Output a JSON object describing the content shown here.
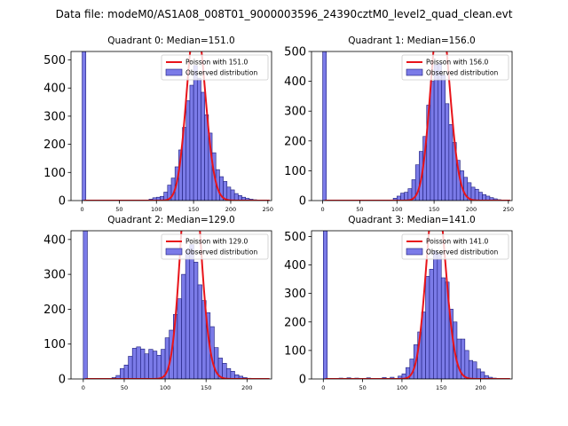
{
  "suptitle": "Data file: modeM0/AS1A08_008T01_9000003596_24390cztM0_level2_quad_clean.evt",
  "colors": {
    "bar_fill": "#7b7be8",
    "bar_edge": "#1c1c7a",
    "poisson_line": "#e8141a",
    "axes": "#000000",
    "legend_edge": "#cccccc"
  },
  "chart_data": [
    {
      "type": "bar",
      "title": "Quadrant 0: Median=151.0",
      "xlim": [
        -15,
        255
      ],
      "ylim": [
        0,
        530
      ],
      "xticks": [
        0,
        50,
        100,
        150,
        200,
        250
      ],
      "yticks": [
        0,
        100,
        200,
        300,
        400,
        500
      ],
      "bin_width": 5,
      "legend": {
        "line": "Poisson with 151.0",
        "bars": "Observed distribution",
        "position": "top-right"
      },
      "bins": [
        [
          0,
          530
        ],
        [
          90,
          5
        ],
        [
          95,
          10
        ],
        [
          100,
          12
        ],
        [
          105,
          15
        ],
        [
          110,
          30
        ],
        [
          115,
          55
        ],
        [
          120,
          80
        ],
        [
          125,
          120
        ],
        [
          130,
          180
        ],
        [
          135,
          260
        ],
        [
          140,
          355
        ],
        [
          145,
          410
        ],
        [
          150,
          480
        ],
        [
          155,
          435
        ],
        [
          160,
          385
        ],
        [
          165,
          305
        ],
        [
          170,
          240
        ],
        [
          175,
          170
        ],
        [
          180,
          110
        ],
        [
          185,
          85
        ],
        [
          190,
          68
        ],
        [
          195,
          48
        ],
        [
          200,
          38
        ],
        [
          205,
          25
        ],
        [
          210,
          18
        ],
        [
          215,
          12
        ],
        [
          220,
          8
        ],
        [
          225,
          5
        ],
        [
          230,
          3
        ],
        [
          235,
          2
        ]
      ],
      "poisson": {
        "mean": 151,
        "scale": 5
      }
    },
    {
      "type": "bar",
      "title": "Quadrant 1: Median=156.0",
      "xlim": [
        -15,
        255
      ],
      "ylim": [
        0,
        500
      ],
      "xticks": [
        0,
        50,
        100,
        150,
        200,
        250
      ],
      "yticks": [
        0,
        100,
        200,
        300,
        400,
        500
      ],
      "bin_width": 5,
      "legend": {
        "line": "Poisson with 156.0",
        "bars": "Observed distribution",
        "position": "top-right"
      },
      "bins": [
        [
          0,
          500
        ],
        [
          95,
          8
        ],
        [
          100,
          15
        ],
        [
          105,
          25
        ],
        [
          110,
          28
        ],
        [
          115,
          40
        ],
        [
          120,
          70
        ],
        [
          125,
          120
        ],
        [
          130,
          165
        ],
        [
          135,
          215
        ],
        [
          140,
          320
        ],
        [
          145,
          400
        ],
        [
          150,
          455
        ],
        [
          155,
          460
        ],
        [
          160,
          420
        ],
        [
          165,
          325
        ],
        [
          170,
          255
        ],
        [
          175,
          195
        ],
        [
          180,
          135
        ],
        [
          185,
          100
        ],
        [
          190,
          78
        ],
        [
          195,
          60
        ],
        [
          200,
          45
        ],
        [
          205,
          38
        ],
        [
          210,
          28
        ],
        [
          215,
          20
        ],
        [
          220,
          15
        ],
        [
          225,
          10
        ],
        [
          230,
          6
        ],
        [
          235,
          3
        ]
      ],
      "poisson": {
        "mean": 156,
        "scale": 5
      }
    },
    {
      "type": "bar",
      "title": "Quadrant 2: Median=129.0",
      "xlim": [
        -15,
        230
      ],
      "ylim": [
        0,
        425
      ],
      "xticks": [
        0,
        50,
        100,
        150,
        200
      ],
      "yticks": [
        0,
        100,
        200,
        300,
        400
      ],
      "bin_width": 5,
      "legend": {
        "line": "Poisson with 129.0",
        "bars": "Observed distribution",
        "position": "top-right"
      },
      "bins": [
        [
          0,
          425
        ],
        [
          35,
          4
        ],
        [
          40,
          10
        ],
        [
          45,
          30
        ],
        [
          50,
          40
        ],
        [
          55,
          65
        ],
        [
          60,
          88
        ],
        [
          65,
          92
        ],
        [
          70,
          86
        ],
        [
          75,
          72
        ],
        [
          80,
          85
        ],
        [
          85,
          80
        ],
        [
          90,
          68
        ],
        [
          95,
          85
        ],
        [
          100,
          118
        ],
        [
          105,
          140
        ],
        [
          110,
          185
        ],
        [
          115,
          230
        ],
        [
          120,
          300
        ],
        [
          125,
          370
        ],
        [
          130,
          385
        ],
        [
          135,
          335
        ],
        [
          140,
          270
        ],
        [
          145,
          225
        ],
        [
          150,
          190
        ],
        [
          155,
          150
        ],
        [
          160,
          90
        ],
        [
          165,
          60
        ],
        [
          170,
          45
        ],
        [
          175,
          30
        ],
        [
          180,
          22
        ],
        [
          185,
          12
        ],
        [
          190,
          8
        ],
        [
          195,
          4
        ],
        [
          200,
          2
        ]
      ],
      "poisson": {
        "mean": 129,
        "scale": 5
      }
    },
    {
      "type": "bar",
      "title": "Quadrant 3: Median=141.0",
      "xlim": [
        -15,
        240
      ],
      "ylim": [
        0,
        520
      ],
      "xticks": [
        0,
        50,
        100,
        150,
        200
      ],
      "yticks": [
        0,
        100,
        200,
        300,
        400,
        500
      ],
      "bin_width": 5,
      "legend": {
        "line": "Poisson with 141.0",
        "bars": "Observed distribution",
        "position": "top-right"
      },
      "bins": [
        [
          0,
          520
        ],
        [
          20,
          3
        ],
        [
          30,
          4
        ],
        [
          40,
          3
        ],
        [
          55,
          4
        ],
        [
          75,
          5
        ],
        [
          85,
          6
        ],
        [
          95,
          10
        ],
        [
          100,
          18
        ],
        [
          105,
          40
        ],
        [
          110,
          70
        ],
        [
          115,
          120
        ],
        [
          120,
          165
        ],
        [
          125,
          235
        ],
        [
          130,
          360
        ],
        [
          135,
          385
        ],
        [
          140,
          450
        ],
        [
          145,
          440
        ],
        [
          150,
          355
        ],
        [
          155,
          340
        ],
        [
          160,
          245
        ],
        [
          165,
          200
        ],
        [
          170,
          140
        ],
        [
          175,
          140
        ],
        [
          180,
          100
        ],
        [
          185,
          65
        ],
        [
          190,
          60
        ],
        [
          195,
          35
        ],
        [
          200,
          25
        ],
        [
          205,
          12
        ],
        [
          210,
          6
        ],
        [
          215,
          3
        ]
      ],
      "poisson": {
        "mean": 141,
        "scale": 5
      }
    }
  ]
}
